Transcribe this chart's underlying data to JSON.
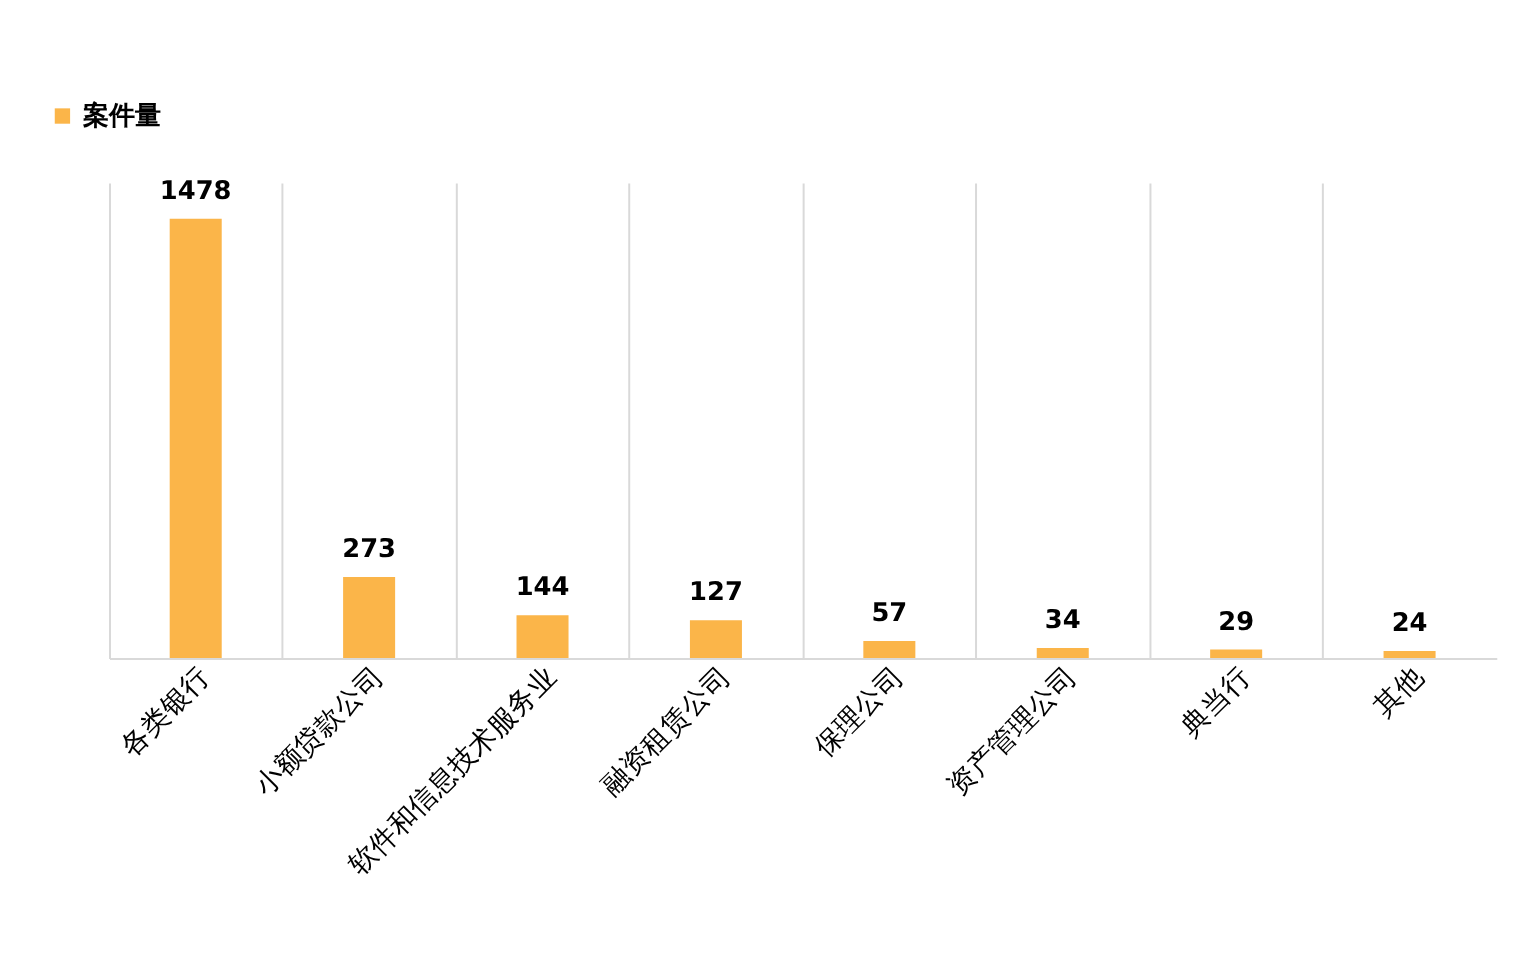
{
  "chart_data": {
    "type": "bar",
    "categories": [
      "各类银行",
      "小额贷款公司",
      "软件和信息技术服务业",
      "融资租赁公司",
      "保理公司",
      "资产管理公司",
      "典当行",
      "其他"
    ],
    "series": [
      {
        "name": "案件量",
        "color": "#fbb549",
        "values": [
          1478,
          273,
          144,
          127,
          57,
          34,
          29,
          24
        ]
      }
    ],
    "data_labels": true,
    "grid": "x",
    "legend": "top left",
    "tick_labels": "x"
  }
}
